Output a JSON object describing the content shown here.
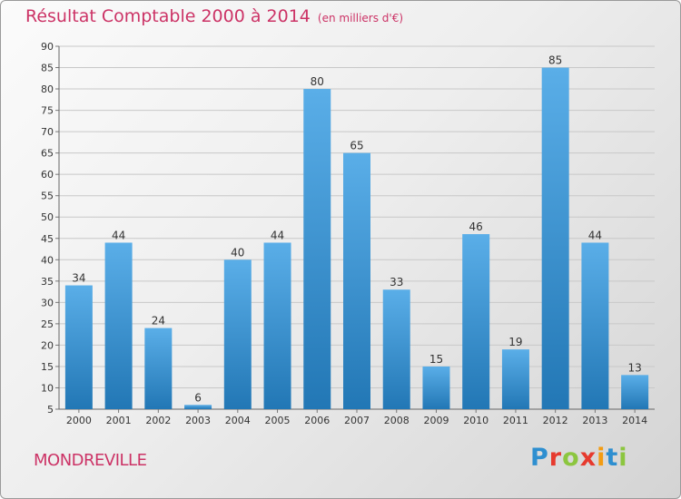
{
  "header": {
    "title": "Résultat Comptable 2000 à 2014",
    "unit": "(en milliers d'€)"
  },
  "footer": {
    "town": "MONDREVILLE",
    "logo": "Proxiti"
  },
  "colors": {
    "title": "#cc3366",
    "bar_light": "#5aaee8",
    "bar_dark": "#2277b5"
  },
  "chart_data": {
    "type": "bar",
    "title": "Résultat Comptable 2000 à 2014",
    "xlabel": "",
    "ylabel": "",
    "ylim": [
      5,
      90
    ],
    "yticks": [
      5,
      10,
      15,
      20,
      25,
      30,
      35,
      40,
      45,
      50,
      55,
      60,
      65,
      70,
      75,
      80,
      85,
      90
    ],
    "grid": true,
    "categories": [
      "2000",
      "2001",
      "2002",
      "2003",
      "2004",
      "2005",
      "2006",
      "2007",
      "2008",
      "2009",
      "2010",
      "2011",
      "2012",
      "2013",
      "2014"
    ],
    "values": [
      34,
      44,
      24,
      6,
      40,
      44,
      80,
      65,
      33,
      15,
      46,
      19,
      85,
      44,
      13
    ]
  }
}
